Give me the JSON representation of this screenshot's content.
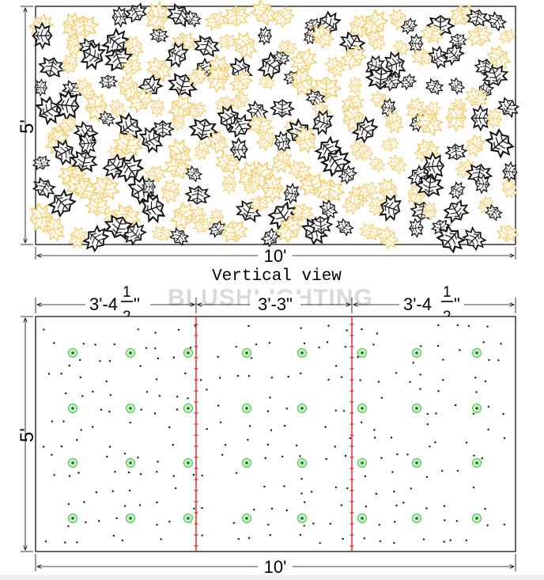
{
  "top_view": {
    "height_label": "5'",
    "width_label": "10'",
    "caption": "Vertical view",
    "leaf_colors": {
      "dark": "#111111",
      "light": "#f3cd6e"
    }
  },
  "bottom_view": {
    "height_label": "5'",
    "width_label": "10'",
    "panels": [
      {
        "whole": "3'-4",
        "num": "1",
        "den": "2",
        "tail": "\""
      },
      {
        "label": "3'-3\""
      },
      {
        "whole": "3'-4",
        "num": "1",
        "den": "2",
        "tail": "\""
      }
    ],
    "seam_color": "#e02020",
    "light_point_color": "#3cc43c"
  },
  "watermark": "BLUSHLIGHTING"
}
